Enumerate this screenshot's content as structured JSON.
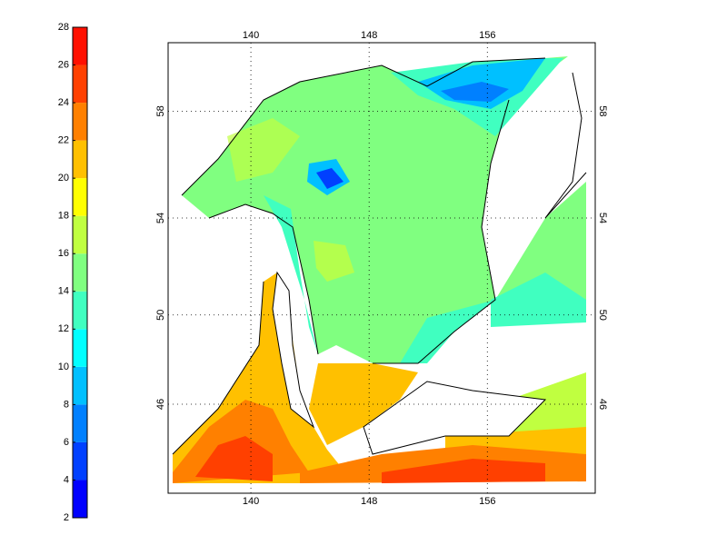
{
  "map": {
    "colorbar": {
      "ticks": [
        2,
        4,
        6,
        8,
        10,
        12,
        14,
        16,
        18,
        20,
        22,
        24,
        26,
        28
      ],
      "colors": [
        "#0000ff",
        "#0040ff",
        "#0080ff",
        "#00c0ff",
        "#00ffff",
        "#40ffc0",
        "#80ff80",
        "#c0ff40",
        "#ffff00",
        "#ffc000",
        "#ff8000",
        "#ff4000",
        "#ff1000",
        "#cc0000"
      ]
    },
    "lon_ticks": [
      140,
      148,
      156
    ],
    "lat_ticks": [
      46,
      50,
      54,
      58
    ],
    "xlim": [
      134.4,
      163.3
    ],
    "ylim": [
      41.7,
      60.35
    ]
  }
}
